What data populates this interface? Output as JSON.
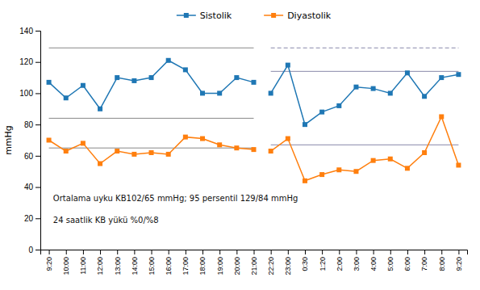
{
  "chart_data": {
    "type": "line",
    "categories": [
      "9:20",
      "10:00",
      "11:00",
      "12:00",
      "13:00",
      "14:00",
      "15:00",
      "16:00",
      "17:00",
      "18:00",
      "19:00",
      "20:00",
      "21:00",
      "22:20",
      "23:00",
      "0:30",
      "1:20",
      "2:00",
      "3:00",
      "4:00",
      "5:00",
      "6:00",
      "7:00",
      "8:00",
      "9:20"
    ],
    "series": [
      {
        "name": "Sistolik",
        "marker": "square",
        "values": [
          107,
          97,
          105,
          90,
          110,
          108,
          110,
          121,
          115,
          100,
          100,
          110,
          107,
          100,
          118,
          80,
          88,
          92,
          104,
          103,
          100,
          113,
          98,
          110,
          112
        ]
      },
      {
        "name": "Diyastolik",
        "marker": "square",
        "values": [
          70,
          63,
          68,
          55,
          63,
          61,
          62,
          61,
          72,
          71,
          67,
          65,
          64,
          63,
          71,
          44,
          48,
          51,
          50,
          57,
          58,
          52,
          62,
          85,
          54
        ]
      }
    ],
    "periods": [
      {
        "start": 0,
        "end": 12
      },
      {
        "start": 13,
        "end": 24
      }
    ],
    "reference_lines": [
      {
        "value": 129,
        "period": 0,
        "line_style": "solid"
      },
      {
        "value": 84,
        "period": 0,
        "line_style": "solid"
      },
      {
        "value": 65,
        "period": 0,
        "line_style": "solid"
      },
      {
        "value": 114,
        "period": 1,
        "line_style": "solid"
      },
      {
        "value": 129,
        "period": 1,
        "line_style": "dashed"
      },
      {
        "value": 67,
        "period": 1,
        "line_style": "solid"
      }
    ],
    "annotations": [
      "Ortalama uyku KB102/65 mmHg; 95 persentil 129/84 mmHg",
      "24 saatlik KB yükü %0/%8"
    ],
    "ylabel": "mmHg",
    "ylim": [
      0,
      140
    ],
    "yticks": [
      0,
      20,
      40,
      60,
      80,
      100,
      120,
      140
    ],
    "legend": "top",
    "grid": false
  }
}
